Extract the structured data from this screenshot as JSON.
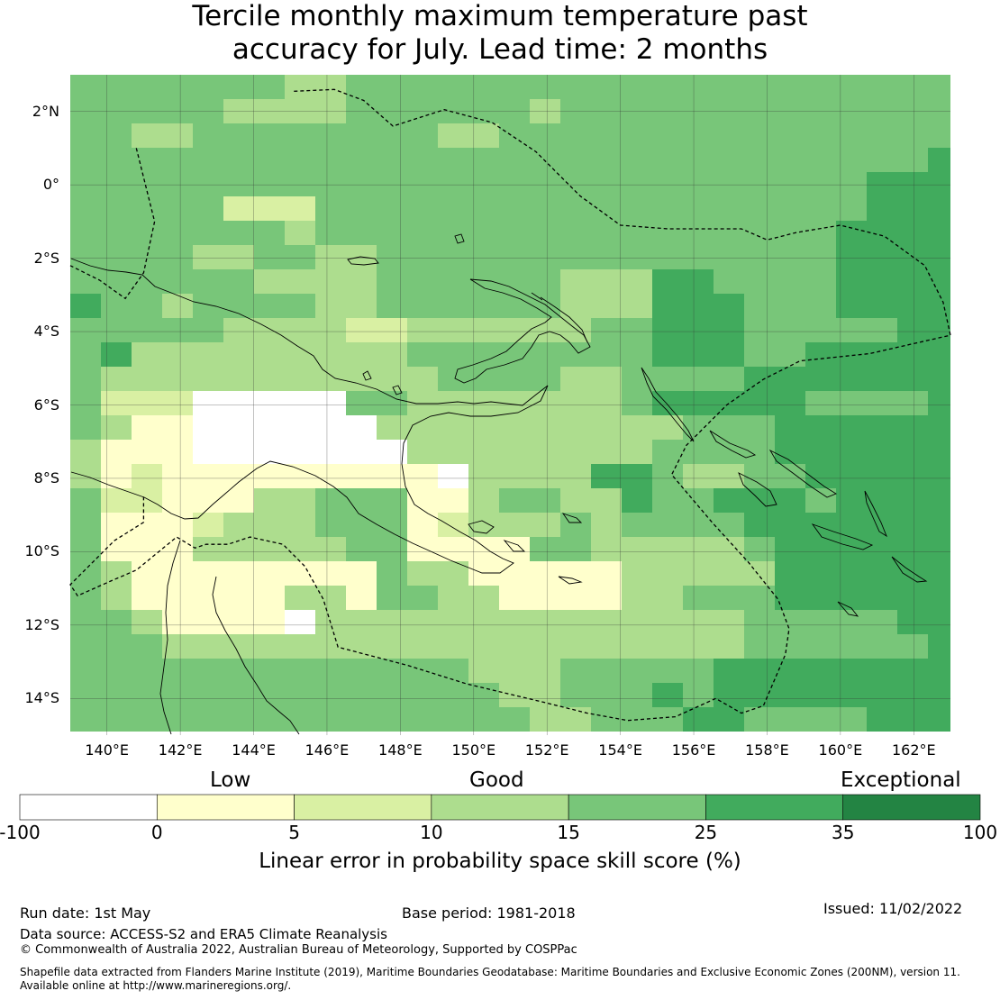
{
  "title": {
    "line1": "Tercile monthly maximum temperature past",
    "line2": "accuracy for July. Lead time: 2 months"
  },
  "map": {
    "extent": {
      "lon_min": 139,
      "lon_max": 163,
      "lat_min": -15,
      "lat_max": 3
    },
    "lat_ticks": [
      {
        "value": 2,
        "label": "2°N"
      },
      {
        "value": 0,
        "label": "0°"
      },
      {
        "value": -2,
        "label": "2°S"
      },
      {
        "value": -4,
        "label": "4°S"
      },
      {
        "value": -6,
        "label": "6°S"
      },
      {
        "value": -8,
        "label": "8°S"
      },
      {
        "value": -10,
        "label": "10°S"
      },
      {
        "value": -12,
        "label": "12°S"
      },
      {
        "value": -14,
        "label": "14°S"
      }
    ],
    "lon_ticks": [
      {
        "value": 140,
        "label": "140°E"
      },
      {
        "value": 142,
        "label": "142°E"
      },
      {
        "value": 144,
        "label": "144°E"
      },
      {
        "value": 146,
        "label": "146°E"
      },
      {
        "value": 148,
        "label": "148°E"
      },
      {
        "value": 150,
        "label": "150°E"
      },
      {
        "value": 152,
        "label": "152°E"
      },
      {
        "value": 154,
        "label": "154°E"
      },
      {
        "value": 156,
        "label": "156°E"
      },
      {
        "value": 158,
        "label": "158°E"
      },
      {
        "value": 160,
        "label": "160°E"
      },
      {
        "value": 162,
        "label": "162°E"
      }
    ],
    "eez_boundary": [
      [
        140.8,
        1.0
      ],
      [
        141.3,
        -1.0
      ],
      [
        141.0,
        -2.4
      ],
      [
        140.5,
        -3.1
      ],
      [
        139.8,
        -2.6
      ],
      [
        139.0,
        -2.2
      ],
      [
        145.1,
        2.55
      ],
      [
        146.2,
        2.6
      ],
      [
        147.0,
        2.3
      ],
      [
        147.8,
        1.6
      ],
      [
        149.2,
        2.05
      ],
      [
        150.5,
        1.7
      ],
      [
        151.7,
        0.9
      ],
      [
        152.9,
        -0.3
      ],
      [
        154.0,
        -1.1
      ],
      [
        155.3,
        -1.2
      ],
      [
        157.3,
        -1.2
      ],
      [
        158.0,
        -1.5
      ],
      [
        158.8,
        -1.3
      ],
      [
        160.0,
        -1.1
      ],
      [
        161.2,
        -1.4
      ],
      [
        162.3,
        -2.2
      ],
      [
        162.8,
        -3.2
      ],
      [
        163.0,
        -4.1
      ],
      [
        160.8,
        -4.6
      ],
      [
        158.9,
        -4.8
      ],
      [
        157.9,
        -5.3
      ],
      [
        156.9,
        -6.0
      ],
      [
        155.8,
        -7.1
      ],
      [
        155.4,
        -7.9
      ],
      [
        156.5,
        -9.2
      ],
      [
        157.5,
        -10.3
      ],
      [
        158.3,
        -11.3
      ],
      [
        158.6,
        -12.1
      ],
      [
        158.5,
        -12.8
      ],
      [
        157.9,
        -14.2
      ],
      [
        157.3,
        -14.4
      ],
      [
        156.6,
        -14.0
      ],
      [
        155.5,
        -14.5
      ],
      [
        154.2,
        -14.6
      ],
      [
        153.1,
        -14.4
      ],
      [
        151.9,
        -14.1
      ],
      [
        149.8,
        -13.6
      ],
      [
        148.2,
        -13.1
      ],
      [
        146.3,
        -12.6
      ],
      [
        145.9,
        -11.3
      ],
      [
        145.4,
        -10.4
      ],
      [
        144.8,
        -9.8
      ],
      [
        143.9,
        -9.6
      ],
      [
        143.3,
        -9.8
      ],
      [
        142.7,
        -9.8
      ],
      [
        142.4,
        -9.9
      ],
      [
        141.9,
        -9.6
      ],
      [
        140.8,
        -10.5
      ],
      [
        140.1,
        -10.8
      ],
      [
        139.2,
        -11.2
      ],
      [
        139.0,
        -10.9
      ],
      [
        140.2,
        -9.7
      ],
      [
        141.0,
        -9.2
      ],
      [
        141.0,
        -8.5
      ]
    ]
  },
  "colorbar": {
    "categories": [
      "Low",
      "Good",
      "Exceptional"
    ],
    "ticks": [
      "-100",
      "0",
      "5",
      "10",
      "15",
      "25",
      "35",
      "100"
    ],
    "bins": [
      {
        "range": [
          "-100",
          "0"
        ],
        "color": "#ffffff"
      },
      {
        "range": [
          "0",
          "5"
        ],
        "color": "#ffffcc"
      },
      {
        "range": [
          "5",
          "10"
        ],
        "color": "#d9f0a3"
      },
      {
        "range": [
          "10",
          "15"
        ],
        "color": "#addd8e"
      },
      {
        "range": [
          "15",
          "25"
        ],
        "color": "#78c679"
      },
      {
        "range": [
          "25",
          "35"
        ],
        "color": "#41ab5d"
      },
      {
        "range": [
          "35",
          "100"
        ],
        "color": "#238443"
      }
    ],
    "title": "Linear error in probability space skill score (%)"
  },
  "footer": {
    "run_date": "Run date: 1st May",
    "base_period": "Base period: 1981-2018",
    "issued": "Issued: 11/02/2022",
    "data_source": "Data source: ACCESS-S2 and ERA5 Climate Reanalysis",
    "copyright": "© Commonwealth of Australia 2022, Australian Bureau of Meteorology, Supported by COSPPac",
    "shapefile_line1": "Shapefile data extracted from Flanders Marine Institute (2019), Maritime Boundaries Geodatabase: Maritime Boundaries and Exclusive Economic Zones (200NM), version 11.",
    "shapefile_line2": "Available online at http://www.marineregions.org/."
  }
}
